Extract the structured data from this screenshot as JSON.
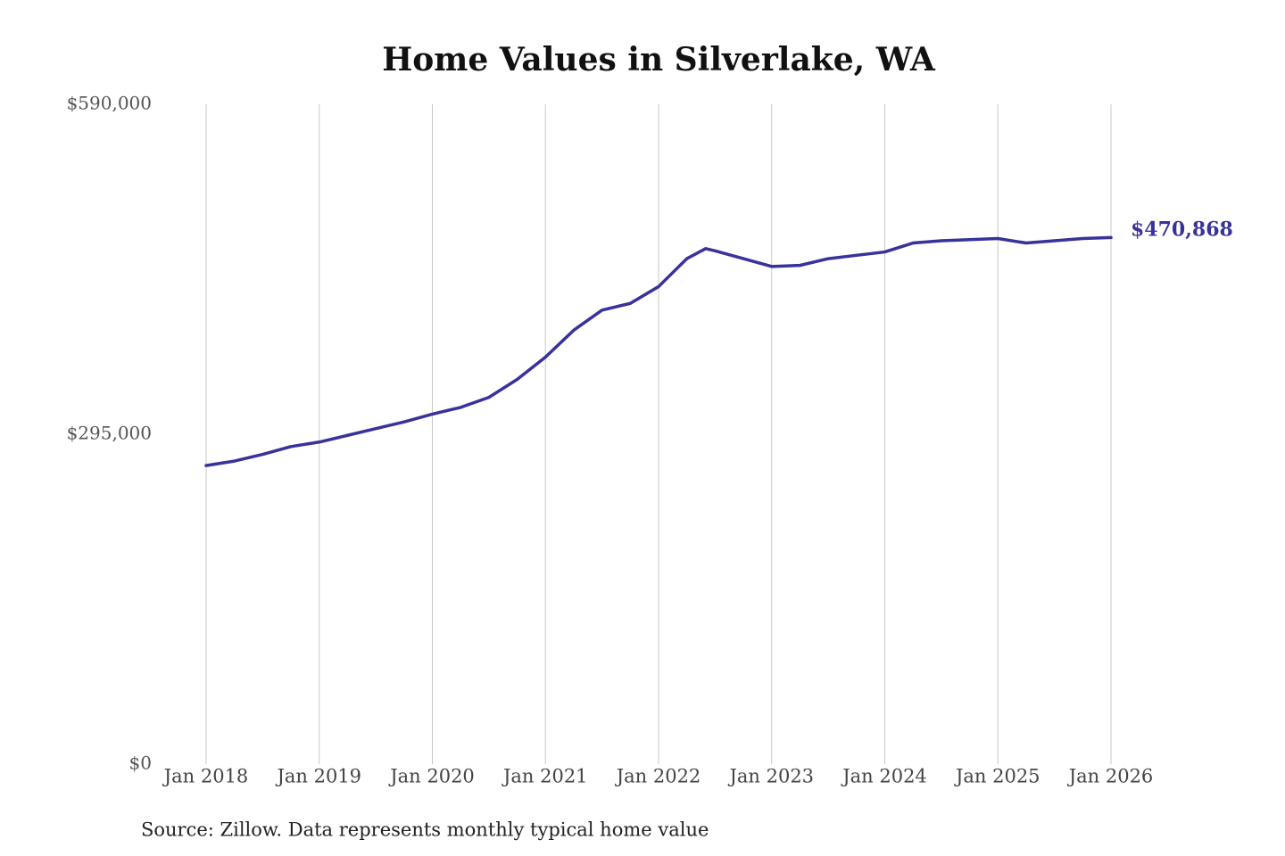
{
  "chart_data": {
    "type": "line",
    "title": "Home Values in Silverlake, WA",
    "source": "Source: Zillow. Data represents monthly typical home value",
    "x": [
      "2018-01",
      "2018-04",
      "2018-07",
      "2018-10",
      "2019-01",
      "2019-04",
      "2019-07",
      "2019-10",
      "2020-01",
      "2020-04",
      "2020-07",
      "2020-10",
      "2021-01",
      "2021-04",
      "2021-07",
      "2021-10",
      "2022-01",
      "2022-04",
      "2022-06",
      "2022-07",
      "2022-10",
      "2023-01",
      "2023-04",
      "2023-07",
      "2023-10",
      "2024-01",
      "2024-04",
      "2024-07",
      "2024-10",
      "2025-01",
      "2025-04",
      "2025-07",
      "2025-10",
      "2026-01"
    ],
    "series": [
      {
        "color": "#38329a",
        "values": [
          267000,
          271000,
          277000,
          284000,
          288000,
          294000,
          300000,
          306000,
          313000,
          319000,
          328000,
          344000,
          364000,
          388000,
          406000,
          412000,
          427000,
          452000,
          461000,
          459000,
          452000,
          445000,
          446000,
          452000,
          455000,
          458000,
          466000,
          468000,
          469000,
          470000,
          466000,
          468000,
          470000,
          470868
        ],
        "value_labels": [
          null,
          null,
          null,
          null,
          null,
          null,
          null,
          null,
          null,
          null,
          null,
          null,
          null,
          null,
          null,
          null,
          null,
          null,
          null,
          null,
          null,
          null,
          null,
          null,
          null,
          null,
          null,
          null,
          null,
          null,
          null,
          null,
          null,
          "$470,868"
        ]
      }
    ],
    "xlim": [
      "2018-01",
      "2026-01"
    ],
    "xticks": [
      {
        "value": "2018-01",
        "label": "Jan 2018"
      },
      {
        "value": "2019-01",
        "label": "Jan 2019"
      },
      {
        "value": "2020-01",
        "label": "Jan 2020"
      },
      {
        "value": "2021-01",
        "label": "Jan 2021"
      },
      {
        "value": "2022-01",
        "label": "Jan 2022"
      },
      {
        "value": "2023-01",
        "label": "Jan 2023"
      },
      {
        "value": "2024-01",
        "label": "Jan 2024"
      },
      {
        "value": "2025-01",
        "label": "Jan 2025"
      },
      {
        "value": "2026-01",
        "label": "Jan 2026"
      }
    ],
    "ylim": [
      0,
      590000
    ],
    "yticks": [
      {
        "value": 0,
        "label": "$0"
      },
      {
        "value": 295000,
        "label": "$295,000"
      },
      {
        "value": 590000,
        "label": "$590,000"
      }
    ],
    "grid": "x"
  }
}
